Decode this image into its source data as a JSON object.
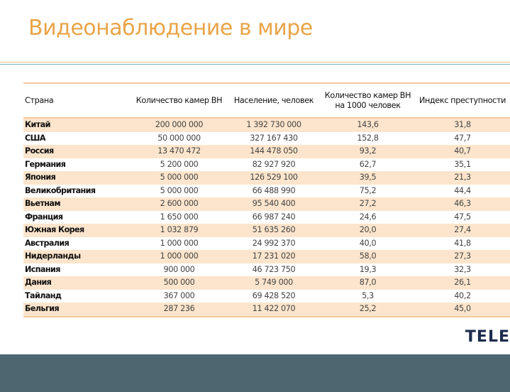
{
  "slide": {
    "title": "Видеонаблюдение в мире",
    "brand_text": "TELE",
    "colors": {
      "title": "#e9a447",
      "row_stripe": "#fce5cc",
      "border": "#f2c9a0",
      "rule_teal": "#6fb3c0",
      "footer": "#4c6770",
      "brand": "#1c2b4e"
    }
  },
  "table": {
    "headers": [
      "Страна",
      "Количество камер ВН",
      "Население, человек",
      "Количество камер ВН на 1000 человек",
      "Индекс преступности"
    ],
    "rows": [
      {
        "country": "Китай",
        "cameras": "200 000 000",
        "population": "1 392 730 000",
        "per1000": "143,6",
        "crime": "31,8"
      },
      {
        "country": "США",
        "cameras": "50 000 000",
        "population": "327 167 430",
        "per1000": "152,8",
        "crime": "47,7"
      },
      {
        "country": "Россия",
        "cameras": "13 470 472",
        "population": "144 478 050",
        "per1000": "93,2",
        "crime": "40,7"
      },
      {
        "country": "Германия",
        "cameras": "5 200 000",
        "population": "82 927 920",
        "per1000": "62,7",
        "crime": "35,1"
      },
      {
        "country": "Япония",
        "cameras": "5 000 000",
        "population": "126 529 100",
        "per1000": "39,5",
        "crime": "21,3"
      },
      {
        "country": "Великобритания",
        "cameras": "5 000 000",
        "population": "66 488 990",
        "per1000": "75,2",
        "crime": "44,4"
      },
      {
        "country": "Вьетнам",
        "cameras": "2 600 000",
        "population": "95 540 400",
        "per1000": "27,2",
        "crime": "46,3"
      },
      {
        "country": "Франция",
        "cameras": "1 650 000",
        "population": "66 987 240",
        "per1000": "24,6",
        "crime": "47,5"
      },
      {
        "country": "Южная Корея",
        "cameras": "1 032 879",
        "population": "51 635 260",
        "per1000": "20,0",
        "crime": "27,4"
      },
      {
        "country": "Австралия",
        "cameras": "1 000 000",
        "population": "24 992 370",
        "per1000": "40,0",
        "crime": "41,8"
      },
      {
        "country": "Нидерланды",
        "cameras": "1 000 000",
        "population": "17 231 020",
        "per1000": "58,0",
        "crime": "27,3"
      },
      {
        "country": "Испания",
        "cameras": "900 000",
        "population": "46 723 750",
        "per1000": "19,3",
        "crime": "32,3"
      },
      {
        "country": "Дания",
        "cameras": "500 000",
        "population": "5 749 000",
        "per1000": "87,0",
        "crime": "26,1"
      },
      {
        "country": "Тайланд",
        "cameras": "367 000",
        "population": "69 428 520",
        "per1000": "5,3",
        "crime": "40,2"
      },
      {
        "country": "Бельгия",
        "cameras": "287 236",
        "population": "11 422 070",
        "per1000": "25,2",
        "crime": "45,0"
      }
    ]
  }
}
